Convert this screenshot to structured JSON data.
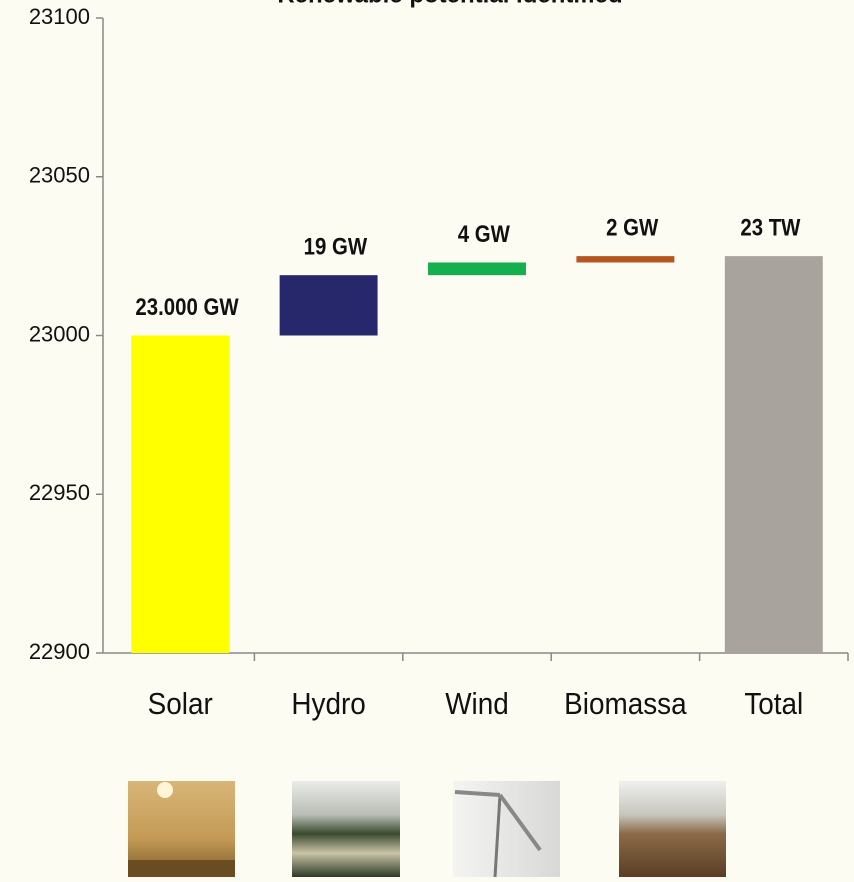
{
  "chart_data": {
    "type": "waterfall",
    "title": "Renewable potential identified",
    "categories": [
      "Solar",
      "Hydro",
      "Wind",
      "Biomassa",
      "Total"
    ],
    "values": [
      23000,
      19,
      4,
      2,
      23025
    ],
    "value_labels": [
      "23.000 GW",
      "19 GW",
      "4 GW",
      "2 GW",
      "23 TW"
    ],
    "colors": [
      "#ffff00",
      "#27276b",
      "#14b050",
      "#b5561e",
      "#a8a39d"
    ],
    "ylim": [
      22900,
      23100
    ],
    "yticks": [
      22900,
      22950,
      23000,
      23050,
      23100
    ],
    "grid": false
  }
}
